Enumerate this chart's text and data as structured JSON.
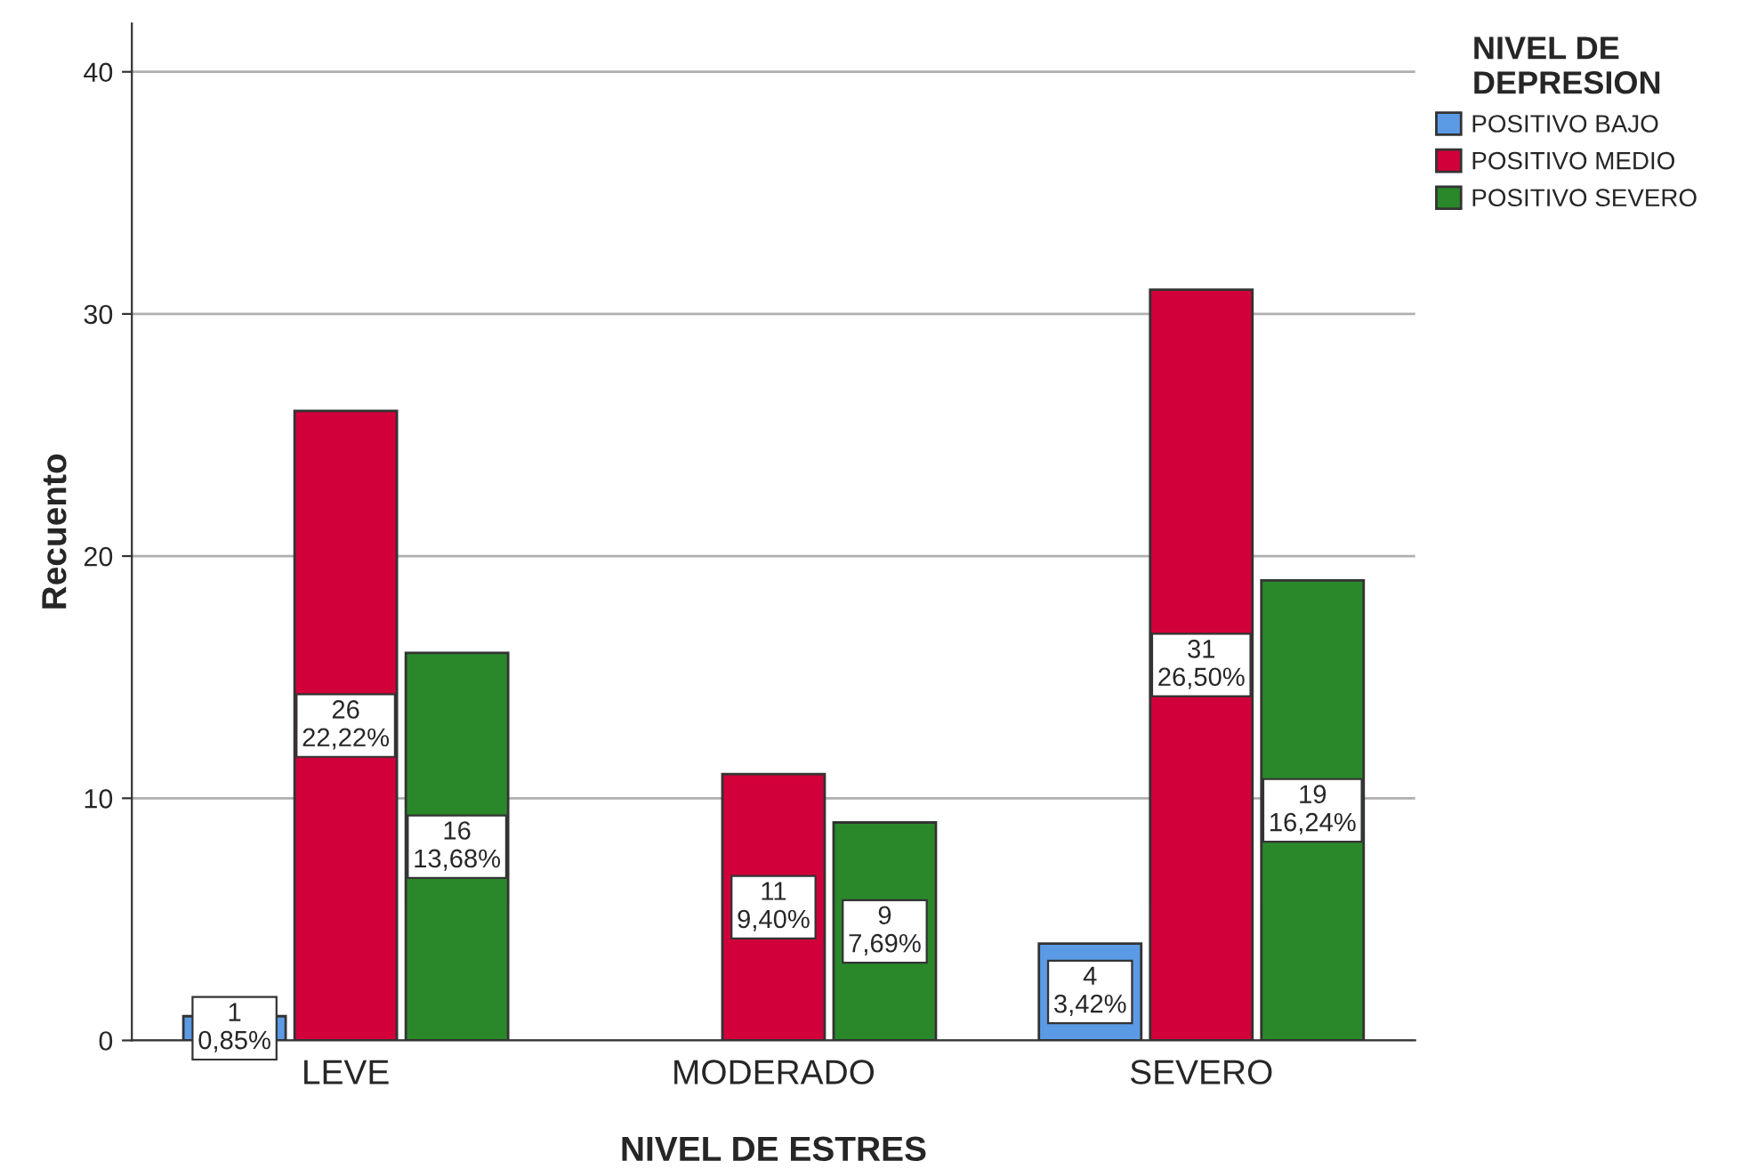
{
  "chart_data": {
    "type": "bar",
    "xlabel": "NIVEL DE ESTRES",
    "ylabel": "Recuento",
    "legend_title": "NIVEL DE\nDEPRESION",
    "categories": [
      "LEVE",
      "MODERADO",
      "SEVERO"
    ],
    "series": [
      {
        "name": "POSITIVO BAJO",
        "color": "#5b9be6",
        "values": [
          1,
          null,
          4
        ],
        "value_labels": [
          "1\n0,85%",
          null,
          "4\n3,42%"
        ]
      },
      {
        "name": "POSITIVO MEDIO",
        "color": "#d2003a",
        "values": [
          26,
          11,
          31
        ],
        "value_labels": [
          "26\n22,22%",
          "11\n9,40%",
          "31\n26,50%"
        ]
      },
      {
        "name": "POSITIVO SEVERO",
        "color": "#2a882a",
        "values": [
          16,
          9,
          19
        ],
        "value_labels": [
          "16\n13,68%",
          "9\n7,69%",
          "19\n16,24%"
        ]
      }
    ],
    "ylim": [
      0,
      42
    ],
    "yticks": [
      0,
      10,
      20,
      30,
      40
    ],
    "grid": "y",
    "legend": "top right"
  }
}
